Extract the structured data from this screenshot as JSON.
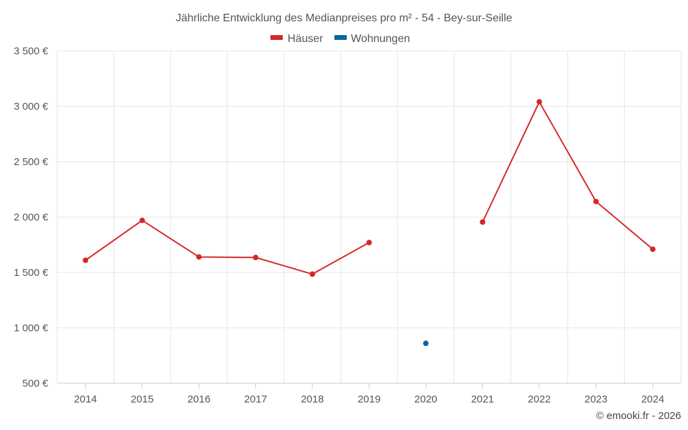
{
  "chart_data": {
    "type": "line",
    "title": "Jährliche Entwicklung des Medianpreises pro m² - 54 - Bey-sur-Seille",
    "categories": [
      "2014",
      "2015",
      "2016",
      "2017",
      "2018",
      "2019",
      "2020",
      "2021",
      "2022",
      "2023",
      "2024"
    ],
    "series": [
      {
        "name": "Häuser",
        "color": "#d62728",
        "values": [
          1610,
          1970,
          1640,
          1635,
          1485,
          1770,
          null,
          1955,
          3040,
          2140,
          1710
        ]
      },
      {
        "name": "Wohnungen",
        "color": "#0b64a0",
        "values": [
          null,
          null,
          null,
          null,
          null,
          null,
          860,
          null,
          null,
          null,
          null
        ]
      }
    ],
    "ylim": [
      500,
      3500
    ],
    "yticks": [
      500,
      1000,
      1500,
      2000,
      2500,
      3000,
      3500
    ],
    "ytick_labels": [
      "500 €",
      "1 000 €",
      "1 500 €",
      "2 000 €",
      "2 500 €",
      "3 000 €",
      "3 500 €"
    ],
    "legend_position": "top-center",
    "grid": true
  },
  "credit": "© emooki.fr - 2026"
}
